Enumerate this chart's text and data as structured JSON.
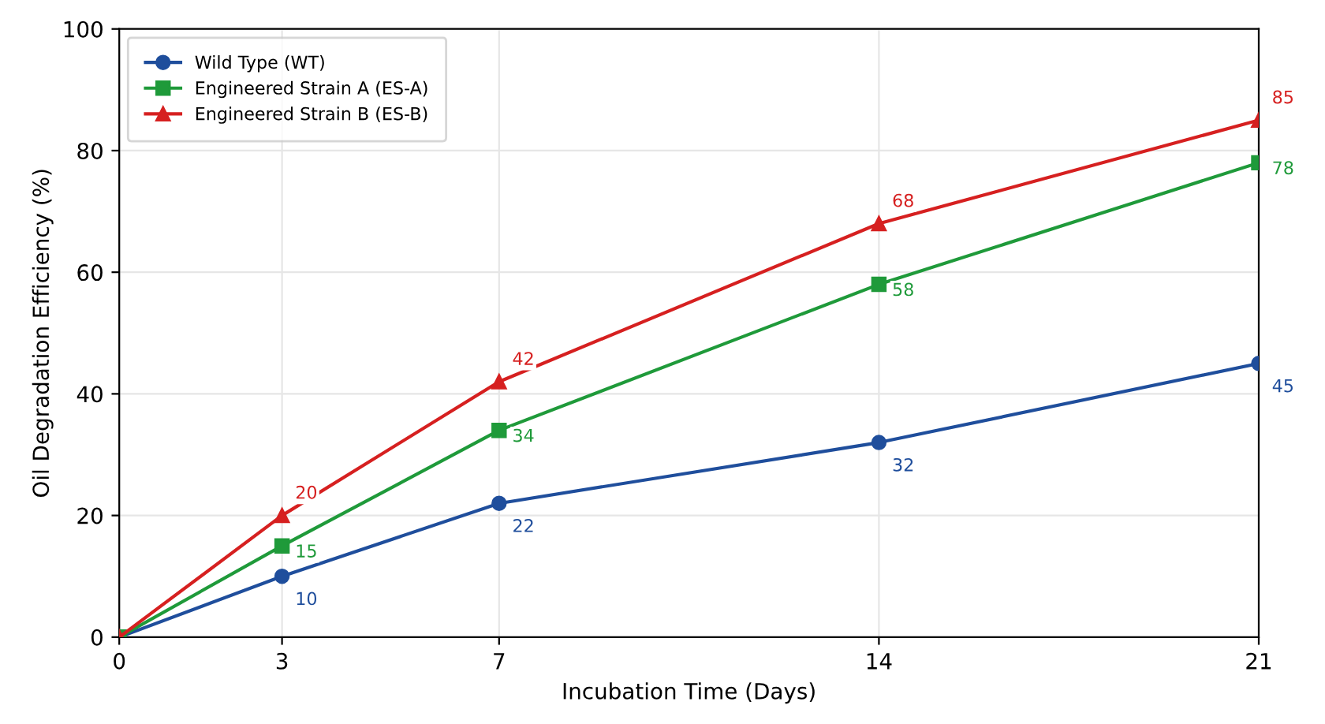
{
  "chart_data": {
    "type": "line",
    "xlabel": "Incubation Time (Days)",
    "ylabel": "Oil Degradation Efficiency (%)",
    "x": [
      0,
      3,
      7,
      14,
      21
    ],
    "xlim": [
      0,
      21
    ],
    "xticks": [
      0,
      3,
      7,
      14,
      21
    ],
    "ylim": [
      0,
      100
    ],
    "yticks": [
      0,
      20,
      40,
      60,
      80,
      100
    ],
    "grid": true,
    "legend": "top left",
    "line_style": "solid",
    "series": [
      {
        "name": "Wild Type (WT)",
        "color": "#1f4e9c",
        "marker": "circle",
        "values": [
          0,
          10,
          22,
          32,
          45
        ],
        "value_labels": [
          null,
          "10",
          "22",
          "32",
          "45"
        ]
      },
      {
        "name": "Engineered Strain A (ES-A)",
        "color": "#1f9a3a",
        "marker": "square",
        "values": [
          0,
          15,
          34,
          58,
          78
        ],
        "value_labels": [
          null,
          "15",
          "34",
          "58",
          "78"
        ]
      },
      {
        "name": "Engineered Strain B (ES-B)",
        "color": "#d62020",
        "marker": "triangle",
        "values": [
          0,
          20,
          42,
          68,
          85
        ],
        "value_labels": [
          null,
          "20",
          "42",
          "68",
          "85"
        ]
      }
    ]
  }
}
